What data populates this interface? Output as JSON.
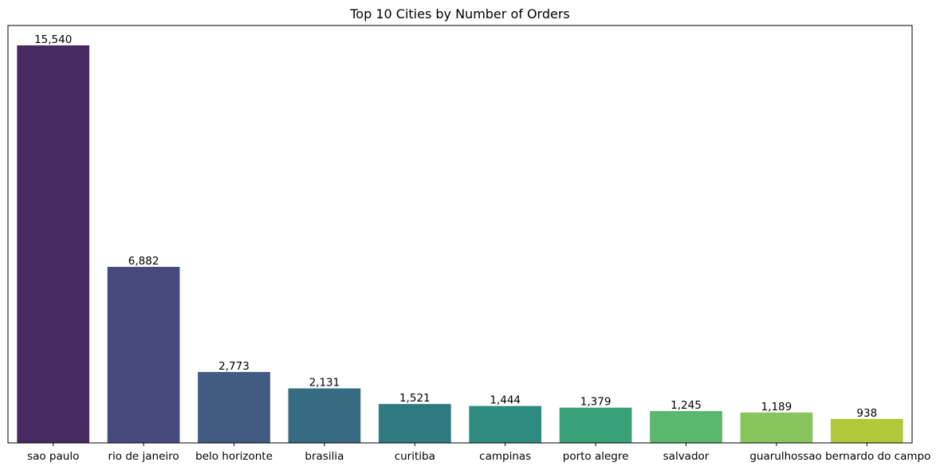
{
  "chart_data": {
    "type": "bar",
    "title": "Top 10 Cities by Number of Orders",
    "xlabel": "",
    "ylabel": "",
    "categories": [
      "sao paulo",
      "rio de janeiro",
      "belo horizonte",
      "brasilia",
      "curitiba",
      "campinas",
      "porto alegre",
      "salvador",
      "guarulhos",
      "sao bernardo do campo"
    ],
    "values": [
      15540,
      6882,
      2773,
      2131,
      1521,
      1444,
      1379,
      1245,
      1189,
      938
    ],
    "value_labels": [
      "15,540",
      "6,882",
      "2,773",
      "2,131",
      "1,521",
      "1,444",
      "1,379",
      "1,245",
      "1,189",
      "938"
    ],
    "ylim": [
      0,
      16317
    ],
    "grid": false,
    "y_ticks_shown": false,
    "colors": [
      "#482a62",
      "#474a7d",
      "#415b82",
      "#376b81",
      "#2f7a80",
      "#2d8c7e",
      "#3aa176",
      "#5bb76d",
      "#88c55c",
      "#b1c73c"
    ]
  }
}
